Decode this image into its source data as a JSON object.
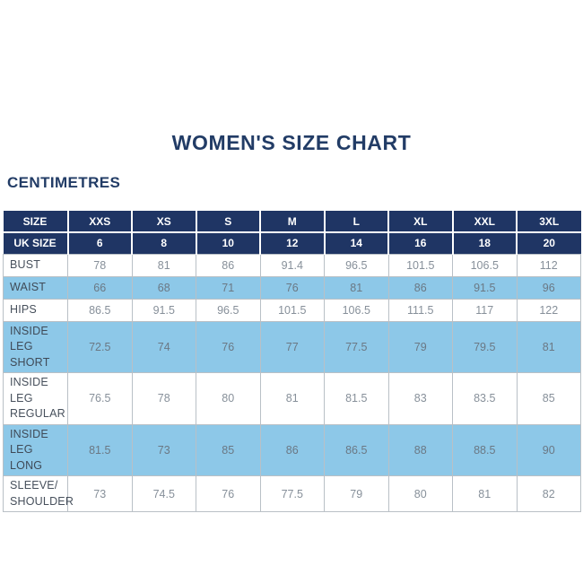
{
  "title": "WOMEN'S SIZE CHART",
  "unit_label": "CENTIMETRES",
  "colors": {
    "header_bg": "#1f3564",
    "header_text": "#ffffff",
    "title_text": "#223c66",
    "shaded_row_bg": "#8dc8e8",
    "body_border": "#b9c0c6",
    "label_text": "#47505c",
    "value_text": "#87909a"
  },
  "chart_data": {
    "type": "table",
    "title": "WOMEN'S SIZE CHART",
    "unit_label": "CENTIMETRES",
    "header_rows": [
      {
        "label": "SIZE",
        "values": [
          "XXS",
          "XS",
          "S",
          "M",
          "L",
          "XL",
          "XXL",
          "3XL"
        ]
      },
      {
        "label": "UK SIZE",
        "values": [
          "6",
          "8",
          "10",
          "12",
          "14",
          "16",
          "18",
          "20"
        ]
      }
    ],
    "rows": [
      {
        "label": "BUST",
        "shaded": false,
        "values": [
          "78",
          "81",
          "86",
          "91.4",
          "96.5",
          "101.5",
          "106.5",
          "112"
        ]
      },
      {
        "label": "WAIST",
        "shaded": true,
        "values": [
          "66",
          "68",
          "71",
          "76",
          "81",
          "86",
          "91.5",
          "96"
        ]
      },
      {
        "label": "HIPS",
        "shaded": false,
        "values": [
          "86.5",
          "91.5",
          "96.5",
          "101.5",
          "106.5",
          "111.5",
          "117",
          "122"
        ]
      },
      {
        "label": "INSIDE LEG SHORT",
        "shaded": true,
        "values": [
          "72.5",
          "74",
          "76",
          "77",
          "77.5",
          "79",
          "79.5",
          "81"
        ]
      },
      {
        "label": "INSIDE LEG REGULAR",
        "shaded": false,
        "values": [
          "76.5",
          "78",
          "80",
          "81",
          "81.5",
          "83",
          "83.5",
          "85"
        ]
      },
      {
        "label": "INSIDE LEG LONG",
        "shaded": true,
        "values": [
          "81.5",
          "73",
          "85",
          "86",
          "86.5",
          "88",
          "88.5",
          "90"
        ]
      },
      {
        "label": "SLEEVE/ SHOULDER",
        "shaded": false,
        "values": [
          "73",
          "74.5",
          "76",
          "77.5",
          "79",
          "80",
          "81",
          "82"
        ]
      }
    ]
  }
}
